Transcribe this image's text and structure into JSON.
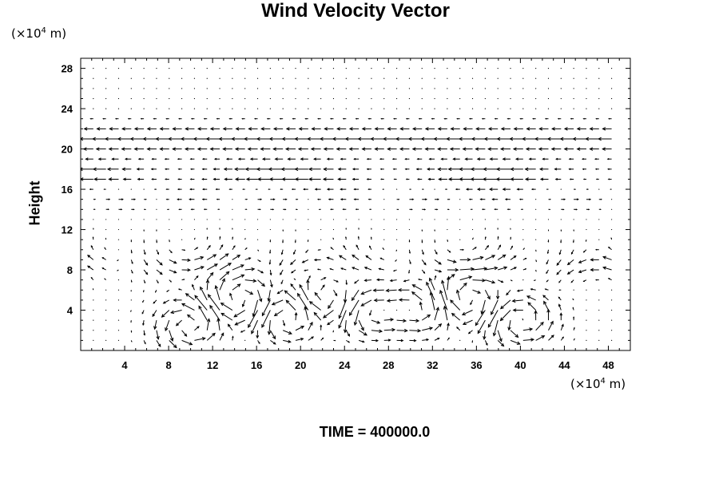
{
  "title": "Wind Velocity Vector",
  "y_unit": {
    "prefix": "(×10",
    "exp": "4",
    "suffix": " m)"
  },
  "x_unit": {
    "prefix": "(×10",
    "exp": "4",
    "suffix": " m)"
  },
  "time_label": "TIME = 400000.0",
  "colors": {
    "background": "#ffffff",
    "ink": "#000000"
  },
  "chart_data": {
    "type": "scatter",
    "title": "Wind Velocity Vector",
    "ylabel": "Height",
    "xlabel": "",
    "xlim": [
      0,
      50
    ],
    "ylim": [
      0,
      29
    ],
    "x_ticks": [
      4,
      8,
      12,
      16,
      20,
      24,
      28,
      32,
      36,
      40,
      44,
      48
    ],
    "y_ticks": [
      4,
      8,
      12,
      16,
      20,
      24,
      28
    ],
    "grid": false,
    "legend": "none",
    "annotation": "TIME = 400000.0",
    "vector_field": {
      "x_start": 0,
      "x_step": 1.15,
      "x_count": 43,
      "y_start": 1,
      "y_step": 1,
      "y_count": 28
    }
  }
}
